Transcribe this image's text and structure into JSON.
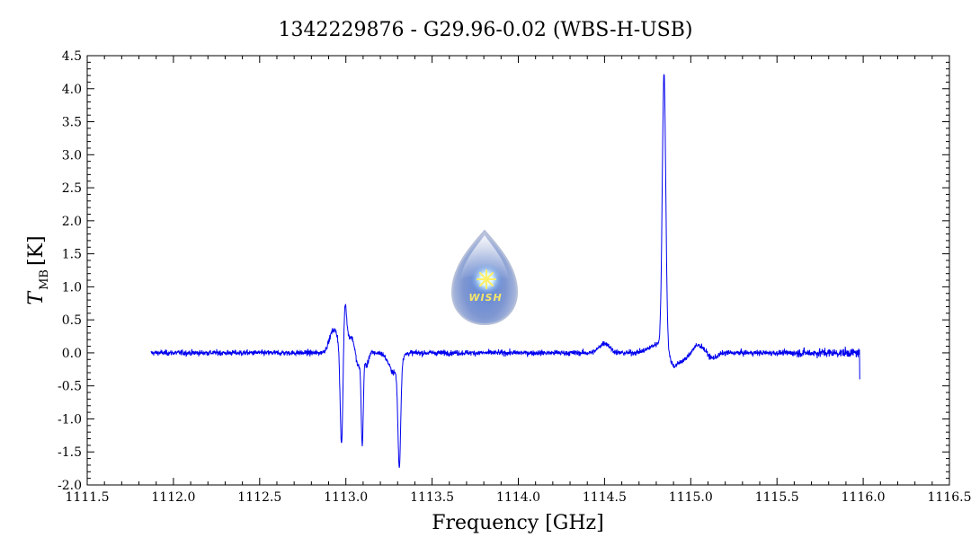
{
  "chart_data": {
    "type": "line",
    "title": "1342229876 - G29.96-0.02 (WBS-H-USB)",
    "xlabel": "Frequency [GHz]",
    "ylabel_main": "T",
    "ylabel_sub": "MB",
    "ylabel_unit": "[K]",
    "xlim": [
      1111.5,
      1116.5
    ],
    "ylim": [
      -2.0,
      4.5
    ],
    "x_ticks": [
      1111.5,
      1112.0,
      1112.5,
      1113.0,
      1113.5,
      1114.0,
      1114.5,
      1115.0,
      1115.5,
      1116.0,
      1116.5
    ],
    "x_tick_labels": [
      "1111.5",
      "1112.0",
      "1112.5",
      "1113.0",
      "1113.5",
      "1114.0",
      "1114.5",
      "1115.0",
      "1115.5",
      "1116.0",
      "1116.5"
    ],
    "y_ticks": [
      -2.0,
      -1.5,
      -1.0,
      -0.5,
      0.0,
      0.5,
      1.0,
      1.5,
      2.0,
      2.5,
      3.0,
      3.5,
      4.0,
      4.5
    ],
    "y_tick_labels": [
      "-2.0",
      "-1.5",
      "-1.0",
      "-0.5",
      "0.0",
      "0.5",
      "1.0",
      "1.5",
      "2.0",
      "2.5",
      "3.0",
      "3.5",
      "4.0",
      "4.5"
    ],
    "grid": false,
    "series": [
      {
        "color": "#0000ee",
        "x_range": [
          1111.87,
          1115.98
        ],
        "baseline_noise": 0.035,
        "features": [
          {
            "center": 1112.93,
            "width": 0.025,
            "amplitude": 0.35
          },
          {
            "center": 1112.975,
            "width": 0.008,
            "amplitude": -1.55
          },
          {
            "center": 1112.995,
            "width": 0.009,
            "amplitude": 0.65
          },
          {
            "center": 1113.03,
            "width": 0.03,
            "amplitude": 0.25
          },
          {
            "center": 1113.07,
            "width": 0.015,
            "amplitude": -0.3
          },
          {
            "center": 1113.095,
            "width": 0.006,
            "amplitude": -1.35
          },
          {
            "center": 1113.12,
            "width": 0.01,
            "amplitude": -0.2
          },
          {
            "center": 1113.28,
            "width": 0.03,
            "amplitude": -0.3
          },
          {
            "center": 1113.31,
            "width": 0.008,
            "amplitude": -1.55
          },
          {
            "center": 1114.5,
            "width": 0.03,
            "amplitude": 0.15
          },
          {
            "center": 1114.83,
            "width": 0.06,
            "amplitude": 0.15
          },
          {
            "center": 1114.845,
            "width": 0.01,
            "amplitude": 4.1
          },
          {
            "center": 1114.9,
            "width": 0.025,
            "amplitude": -0.25
          },
          {
            "center": 1114.96,
            "width": 0.03,
            "amplitude": -0.12
          },
          {
            "center": 1115.05,
            "width": 0.04,
            "amplitude": 0.12
          },
          {
            "center": 1115.12,
            "width": 0.03,
            "amplitude": -0.1
          }
        ]
      }
    ]
  },
  "logo": {
    "text": "WISH",
    "color_top": "#c6d0e6",
    "color_bottom": "#8fa2d0",
    "star_color": "#ffef66"
  }
}
